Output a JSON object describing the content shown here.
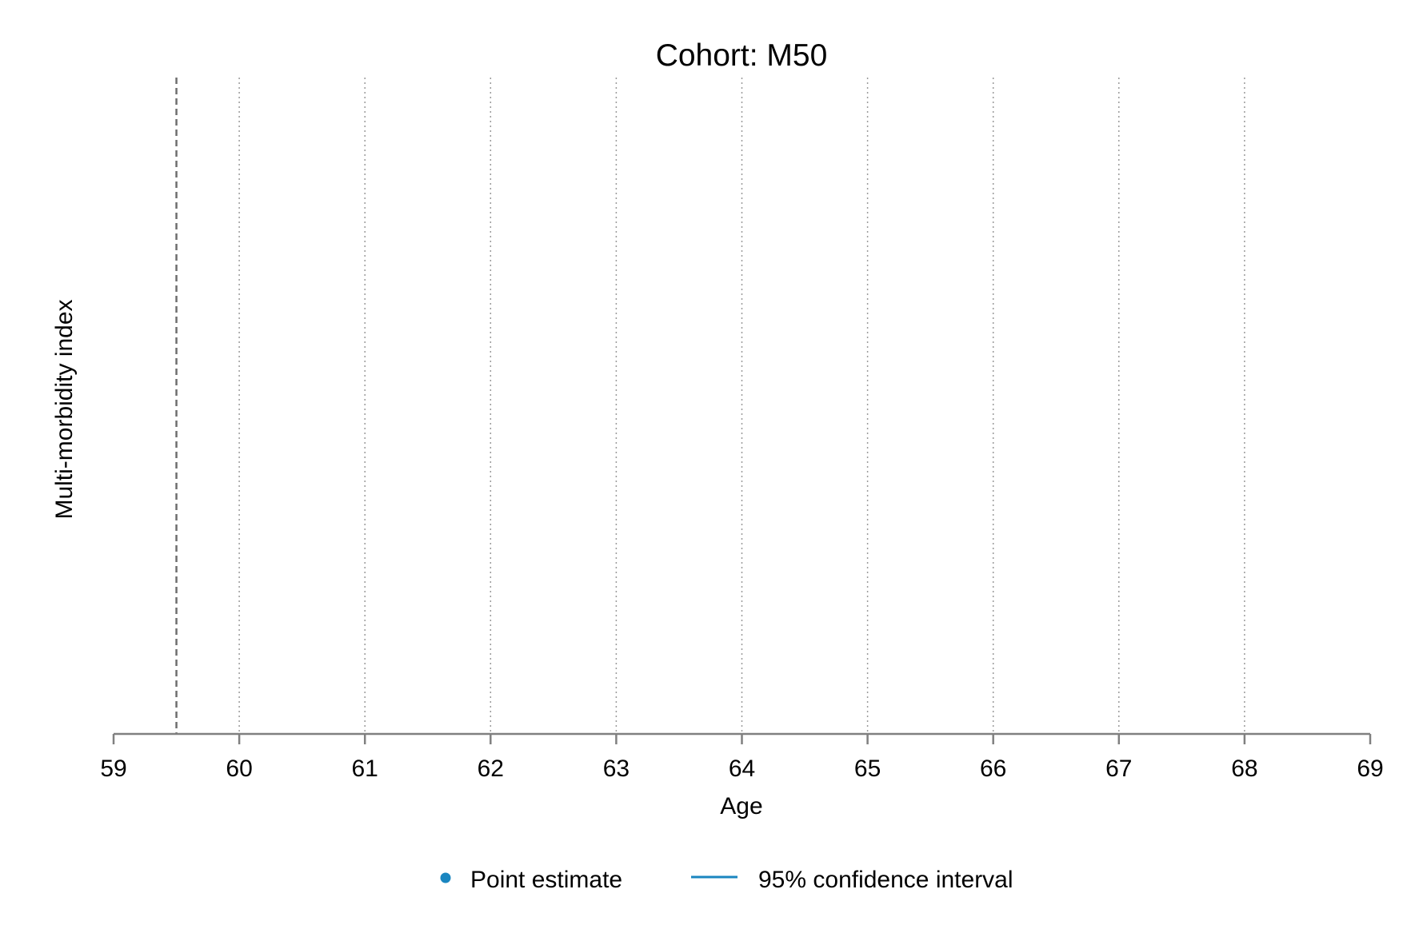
{
  "chart_data": {
    "type": "scatter",
    "title": "Cohort: M50",
    "xlabel": "Age",
    "ylabel": "Multi-morbidity index",
    "xlim": [
      59,
      69
    ],
    "x_ticks": [
      "59",
      "60",
      "61",
      "62",
      "63",
      "64",
      "65",
      "66",
      "67",
      "68",
      "69"
    ],
    "grid": "vertical dotted at each integer age",
    "reference_line_x": 59.5,
    "series": [
      {
        "name": "Point estimate",
        "x": [],
        "y": []
      },
      {
        "name": "95% confidence interval",
        "x": [],
        "lower": [],
        "upper": []
      }
    ],
    "legend": {
      "position": "bottom",
      "items": [
        {
          "label": "Point estimate",
          "marker": "dot"
        },
        {
          "label": "95% confidence interval",
          "marker": "line"
        }
      ]
    },
    "colors": {
      "series": "#1a86c0",
      "axis": "#808080",
      "grid": "#9a9a9a",
      "refline": "#6e6e6e"
    }
  }
}
